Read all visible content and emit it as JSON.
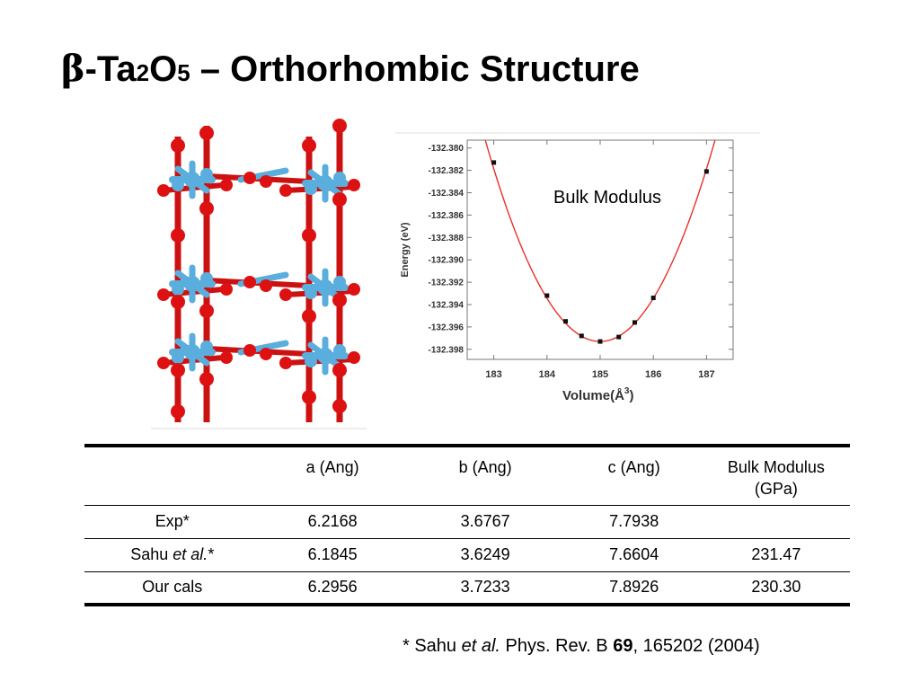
{
  "title": {
    "beta": "β",
    "prefix": "-Ta",
    "sub1": "2",
    "mid": "O",
    "sub2": "5",
    "rest": " – Orthorhombic Structure"
  },
  "structure_image": {
    "colors": {
      "ta_atom": "#5aaedd",
      "o_atom": "#dd1111",
      "bond": "#cc1111"
    }
  },
  "chart_data": {
    "type": "scatter",
    "annotation": "Bulk Modulus",
    "xlabel": "Volume",
    "xlabel_unit": "(Å",
    "xlabel_unit_sup": "3",
    "xlabel_unit_close": ")",
    "ylabel": "Energy (eV)",
    "xlim": [
      182.5,
      187.5
    ],
    "ylim": [
      -132.3989,
      -132.3793
    ],
    "x_ticks": [
      183,
      184,
      185,
      186,
      187
    ],
    "y_ticks": [
      -132.38,
      -132.382,
      -132.384,
      -132.386,
      -132.388,
      -132.39,
      -132.392,
      -132.394,
      -132.396,
      -132.398
    ],
    "y_tick_labels": [
      "-132.380",
      "-132.382",
      "-132.384",
      "-132.386",
      "-132.388",
      "-132.390",
      "-132.392",
      "-132.394",
      "-132.396",
      "-132.398"
    ],
    "series": [
      {
        "points": [
          {
            "x": 183.0,
            "y": -132.3813
          },
          {
            "x": 184.0,
            "y": -132.3932
          },
          {
            "x": 184.35,
            "y": -132.3955
          },
          {
            "x": 184.65,
            "y": -132.3968
          },
          {
            "x": 185.0,
            "y": -132.3973
          },
          {
            "x": 185.35,
            "y": -132.3969
          },
          {
            "x": 185.65,
            "y": -132.3956
          },
          {
            "x": 186.0,
            "y": -132.3934
          },
          {
            "x": 187.0,
            "y": -132.3821
          }
        ]
      }
    ],
    "fit_curve": {
      "type": "quadratic",
      "vertex_x": 185.0,
      "vertex_y": -132.3973,
      "a": 0.00386
    },
    "colors": {
      "curve": "#e8302a",
      "marker": "#111111",
      "axis": "#777777"
    }
  },
  "table": {
    "headers": [
      "",
      "a (Ang)",
      "b (Ang)",
      "c (Ang)",
      "Bulk Modulus (GPa)"
    ],
    "bulk_header_line1": "Bulk Modulus",
    "bulk_header_line2": "(GPa)",
    "rows": [
      {
        "label": "Exp*",
        "label_italic": "",
        "label_suffix": "",
        "a": "6.2168",
        "b": "3.6767",
        "c": "7.7938",
        "bulk": ""
      },
      {
        "label": "Sahu ",
        "label_italic": "et al.",
        "label_suffix": "*",
        "a": "6.1845",
        "b": "3.6249",
        "c": "7.6604",
        "bulk": "231.47"
      },
      {
        "label": "Our cals",
        "label_italic": "",
        "label_suffix": "",
        "a": "6.2956",
        "b": "3.7233",
        "c": "7.8926",
        "bulk": "230.30"
      }
    ]
  },
  "reference": {
    "prefix": "* Sahu ",
    "italic": "et al.",
    "journal": " Phys. Rev. B ",
    "volume": "69",
    "rest": ", 165202 (2004)"
  }
}
